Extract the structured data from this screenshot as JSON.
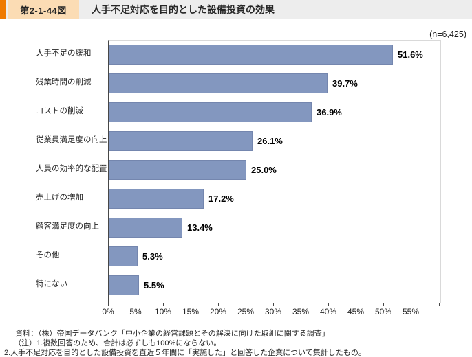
{
  "header": {
    "figure_number": "第2-1-44図",
    "title": "人手不足対応を目的とした設備投資の効果"
  },
  "sample_size_label": "(n=6,425)",
  "chart_data": {
    "type": "bar",
    "orientation": "horizontal",
    "title": "人手不足対応を目的とした設備投資の効果",
    "xlabel": "",
    "ylabel": "",
    "xlim": [
      0,
      60
    ],
    "grid": false,
    "legend": "none",
    "x_tick_values": [
      0,
      5,
      10,
      15,
      20,
      25,
      30,
      35,
      40,
      45,
      50,
      55
    ],
    "x_tick_labels": [
      "0%",
      "5%",
      "10%",
      "15%",
      "20%",
      "25%",
      "30%",
      "35%",
      "40%",
      "45%",
      "50%",
      "55%"
    ],
    "categories": [
      "人手不足の緩和",
      "残業時間の削減",
      "コストの削減",
      "従業員満足度の向上",
      "人員の効率的な配置",
      "売上げの増加",
      "顧客満足度の向上",
      "その他",
      "特にない"
    ],
    "values": [
      51.6,
      39.7,
      36.9,
      26.1,
      25.0,
      17.2,
      13.4,
      5.3,
      5.5
    ],
    "value_labels": [
      "51.6%",
      "39.7%",
      "36.9%",
      "26.1%",
      "25.0%",
      "17.2%",
      "13.4%",
      "5.3%",
      "5.5%"
    ]
  },
  "colors": {
    "accent_orange": "#ef7a00",
    "figure_box_bg": "#fbdcb4",
    "header_band_bg": "#ededed",
    "bar_fill": "#8397bf",
    "bar_border": "#7486ae",
    "axis_line": "#474747",
    "plot_border": "#d9d9d9"
  },
  "footer": {
    "lines": [
      "資料：（株）帝国データバンク「中小企業の経営課題とその解決に向けた取組に関する調査」",
      "（注）1.複数回答のため、合計は必ずしも100%にならない。",
      "2.人手不足対応を目的とした設備投資を直近５年間に「実施した」と回答した企業について集計したもの。"
    ]
  }
}
